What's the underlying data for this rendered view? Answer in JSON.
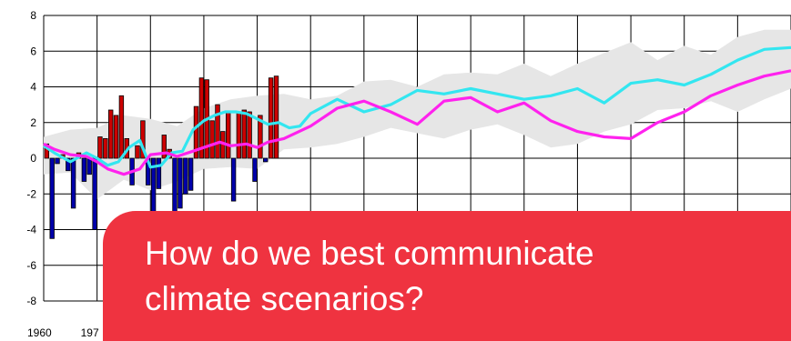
{
  "callout": {
    "text": "How do we best communicate\nclimate scenarios?"
  },
  "colors": {
    "bar_positive": "#cc0000",
    "bar_negative": "#0000aa",
    "band": "#e6e6e6",
    "cyan_line": "#33e6f0",
    "magenta_line": "#ff22ee",
    "callout_background": "#ef3340"
  },
  "chart_data": {
    "type": "bar",
    "xlim": [
      1960,
      2100
    ],
    "ylim": [
      -8,
      8
    ],
    "yticks": [
      "8",
      "6",
      "4",
      "2",
      "0",
      "-2",
      "-4",
      "-6",
      "-8"
    ],
    "xticks": [
      "1960",
      "197"
    ],
    "grid": true,
    "bars": [
      {
        "year": 1960,
        "value": 0.8
      },
      {
        "year": 1961,
        "value": -4.5
      },
      {
        "year": 1962,
        "value": -0.3
      },
      {
        "year": 1963,
        "value": 0.2
      },
      {
        "year": 1964,
        "value": -0.7
      },
      {
        "year": 1965,
        "value": -2.8
      },
      {
        "year": 1966,
        "value": 0.3
      },
      {
        "year": 1967,
        "value": -1.3
      },
      {
        "year": 1968,
        "value": -0.9
      },
      {
        "year": 1969,
        "value": -4.0
      },
      {
        "year": 1970,
        "value": 1.2
      },
      {
        "year": 1971,
        "value": 1.1
      },
      {
        "year": 1972,
        "value": 2.7
      },
      {
        "year": 1973,
        "value": 2.4
      },
      {
        "year": 1974,
        "value": 3.5
      },
      {
        "year": 1975,
        "value": 1.1
      },
      {
        "year": 1976,
        "value": -1.5
      },
      {
        "year": 1977,
        "value": 0.7
      },
      {
        "year": 1978,
        "value": 2.1
      },
      {
        "year": 1979,
        "value": -1.5
      },
      {
        "year": 1980,
        "value": -3.5
      },
      {
        "year": 1981,
        "value": -1.7
      },
      {
        "year": 1982,
        "value": 1.3
      },
      {
        "year": 1983,
        "value": 0.5
      },
      {
        "year": 1984,
        "value": -3.5
      },
      {
        "year": 1985,
        "value": -2.8
      },
      {
        "year": 1986,
        "value": -2.0
      },
      {
        "year": 1987,
        "value": -1.8
      },
      {
        "year": 1988,
        "value": 2.9
      },
      {
        "year": 1989,
        "value": 4.5
      },
      {
        "year": 1990,
        "value": 4.4
      },
      {
        "year": 1991,
        "value": 2.1
      },
      {
        "year": 1992,
        "value": 3.0
      },
      {
        "year": 1993,
        "value": 1.5
      },
      {
        "year": 1994,
        "value": 2.6
      },
      {
        "year": 1995,
        "value": -2.4
      },
      {
        "year": 1996,
        "value": 2.6
      },
      {
        "year": 1997,
        "value": 2.7
      },
      {
        "year": 1998,
        "value": 2.6
      },
      {
        "year": 1999,
        "value": -1.3
      },
      {
        "year": 2000,
        "value": 2.4
      },
      {
        "year": 2001,
        "value": -0.2
      },
      {
        "year": 2002,
        "value": 4.5
      },
      {
        "year": 2003,
        "value": 4.6
      }
    ],
    "band": {
      "x": [
        1960,
        1965,
        1970,
        1975,
        1980,
        1985,
        1990,
        1995,
        2000,
        2005,
        2010,
        2015,
        2020,
        2025,
        2030,
        2035,
        2040,
        2045,
        2050,
        2055,
        2060,
        2065,
        2070,
        2075,
        2080,
        2085,
        2090,
        2095,
        2100
      ],
      "upper": [
        1.2,
        1.6,
        1.7,
        2.4,
        2.2,
        1.8,
        2.8,
        3.3,
        3.5,
        3.6,
        3.3,
        3.5,
        4.3,
        4.4,
        4.0,
        4.7,
        4.8,
        4.7,
        5.3,
        4.6,
        5.3,
        5.9,
        6.5,
        5.5,
        6.3,
        5.8,
        6.8,
        7.2,
        7.2
      ],
      "lower": [
        -0.9,
        -0.8,
        -2.3,
        -1.2,
        -1.8,
        -1.3,
        -0.6,
        -0.5,
        -0.6,
        0.5,
        0.6,
        0.8,
        1.2,
        1.7,
        1.4,
        1.1,
        1.6,
        1.9,
        1.3,
        0.6,
        0.8,
        1.5,
        1.9,
        2.7,
        2.8,
        3.2,
        2.6,
        3.3,
        3.9
      ]
    },
    "series": [
      {
        "x": [
          1960,
          1962,
          1965,
          1968,
          1970,
          1972,
          1974,
          1976,
          1978,
          1980,
          1982,
          1984,
          1986,
          1988,
          1990,
          1992,
          1994,
          1996,
          1998,
          2000,
          2002,
          2004,
          2006,
          2008,
          2010,
          2015,
          2020,
          2025,
          2030,
          2035,
          2040,
          2045,
          2050,
          2055,
          2060,
          2065,
          2070,
          2075,
          2080,
          2085,
          2090,
          2095,
          2100
        ],
        "values": [
          0.7,
          0.3,
          -0.2,
          0.3,
          0.0,
          -0.4,
          -0.2,
          0.6,
          1.0,
          -0.5,
          -0.4,
          0.3,
          0.4,
          1.6,
          2.1,
          2.4,
          2.6,
          2.6,
          2.5,
          2.2,
          1.9,
          2.0,
          1.7,
          1.8,
          2.5,
          3.3,
          2.6,
          3.0,
          3.8,
          3.6,
          3.9,
          3.6,
          3.3,
          3.5,
          3.9,
          3.1,
          4.2,
          4.4,
          4.1,
          4.7,
          5.5,
          6.1,
          6.2
        ],
        "color": "#33e6f0"
      },
      {
        "x": [
          1960,
          1962,
          1965,
          1968,
          1970,
          1972,
          1975,
          1978,
          1980,
          1983,
          1985,
          1988,
          1990,
          1993,
          1995,
          1998,
          2000,
          2002,
          2005,
          2010,
          2015,
          2020,
          2025,
          2030,
          2035,
          2040,
          2045,
          2050,
          2055,
          2060,
          2065,
          2070,
          2075,
          2080,
          2085,
          2090,
          2095,
          2100
        ],
        "values": [
          0.8,
          0.5,
          0.2,
          0.1,
          -0.2,
          -0.6,
          -0.9,
          -0.6,
          0.2,
          0.3,
          0.1,
          0.4,
          0.6,
          0.9,
          0.7,
          0.8,
          0.6,
          0.9,
          1.1,
          1.8,
          2.8,
          3.2,
          2.6,
          1.9,
          3.2,
          3.4,
          2.6,
          3.1,
          2.1,
          1.5,
          1.2,
          1.1,
          2.0,
          2.6,
          3.5,
          4.1,
          4.6,
          4.9
        ]
      }
    ]
  }
}
